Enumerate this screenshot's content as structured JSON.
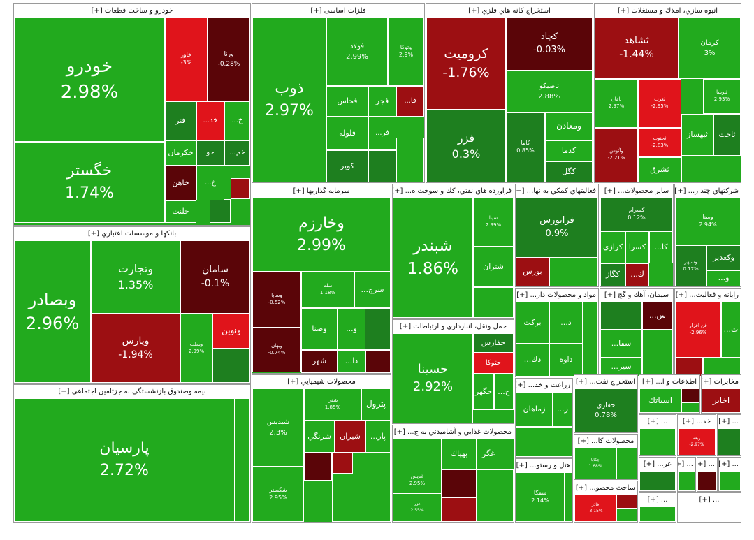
{
  "chart_data": {
    "type": "treemap",
    "colors": {
      "strong_up": "#22aa1e",
      "mild_up": "#1e7f1f",
      "down": "#5a0508",
      "strong_down": "#9c0f12",
      "extreme_down": "#e0141b",
      "border": "#ffffff",
      "header_bg": "#ffffff",
      "header_text": "#111111"
    },
    "sectors": [
      {
        "id": "s1",
        "title": "خودرو و ساخت قطعات [+]",
        "tiles": [
          {
            "name": "خودرو",
            "change": "2.98%",
            "value": 2.98
          },
          {
            "name": "خگستر",
            "change": "1.74%",
            "value": 1.74
          },
          {
            "name": "خاور",
            "change": "-3%",
            "value": -3
          },
          {
            "name": "ورنا",
            "change": "-0.28%",
            "value": -0.28
          },
          {
            "name": "فنر",
            "change": "",
            "value": 0.5
          },
          {
            "name": "خد...",
            "change": "",
            "value": -3
          },
          {
            "name": "خ...",
            "change": "",
            "value": 1.2
          },
          {
            "name": "خكرمان",
            "change": "",
            "value": 2
          },
          {
            "name": "خو",
            "change": "",
            "value": 0.4
          },
          {
            "name": "خم...",
            "change": "",
            "value": 0.3
          },
          {
            "name": "خاهن",
            "change": "",
            "value": -0.5
          },
          {
            "name": "خ...",
            "change": "",
            "value": 2
          },
          {
            "name": "خلنت",
            "change": "",
            "value": 2
          }
        ]
      },
      {
        "id": "s2",
        "title": "فلزات اساسی [+]",
        "tiles": [
          {
            "name": "ذوب",
            "change": "2.97%",
            "value": 2.97
          },
          {
            "name": "فولاد",
            "change": "2.99%",
            "value": 2.99
          },
          {
            "name": "وتوكا",
            "change": "2.9%",
            "value": 2.9
          },
          {
            "name": "فخاس",
            "change": "",
            "value": 2
          },
          {
            "name": "فجر",
            "change": "",
            "value": 2
          },
          {
            "name": "فا...",
            "change": "",
            "value": -2
          },
          {
            "name": "فلوله",
            "change": "",
            "value": 2
          },
          {
            "name": "فر...",
            "change": "",
            "value": 2
          },
          {
            "name": "كوير",
            "change": "",
            "value": 0.5
          }
        ]
      },
      {
        "id": "s3",
        "title": "استخراج كانه هاي فلزي [+]",
        "tiles": [
          {
            "name": "كروميت",
            "change": "-1.76%",
            "value": -1.76
          },
          {
            "name": "كچاد",
            "change": "-0.03%",
            "value": -0.03
          },
          {
            "name": "تاصيكو",
            "change": "2.88%",
            "value": 2.88
          },
          {
            "name": "فزر",
            "change": "0.3%",
            "value": 0.3
          },
          {
            "name": "كاما",
            "change": "0.85%",
            "value": 0.85
          },
          {
            "name": "ومعادن",
            "change": "",
            "value": 2
          },
          {
            "name": "كدما",
            "change": "",
            "value": 2
          },
          {
            "name": "كگل",
            "change": "",
            "value": 0.5
          }
        ]
      },
      {
        "id": "s4",
        "title": "انبوه سازي، املاك و مستغلات [+]",
        "tiles": [
          {
            "name": "ثشاهد",
            "change": "-1.44%",
            "value": -1.44
          },
          {
            "name": "كرمان",
            "change": "3%",
            "value": 3
          },
          {
            "name": "ثامان",
            "change": "2.97%",
            "value": 2.97
          },
          {
            "name": "ثغرب",
            "change": "-2.95%",
            "value": -2.95
          },
          {
            "name": "ثنوسا",
            "change": "2.93%",
            "value": 2.93
          },
          {
            "name": "ثجنوب",
            "change": "-2.83%",
            "value": -2.83
          },
          {
            "name": "ثبهساز",
            "change": "",
            "value": 1
          },
          {
            "name": "ثاخت",
            "change": "",
            "value": 0.5
          },
          {
            "name": "وآتوس",
            "change": "-2.21%",
            "value": -2.21
          },
          {
            "name": "ثشرق",
            "change": "",
            "value": 2
          }
        ]
      },
      {
        "id": "s5",
        "title": "بانكها و موسسات اعتباري [+]",
        "tiles": [
          {
            "name": "وبصادر",
            "change": "2.96%",
            "value": 2.96
          },
          {
            "name": "وتجارت",
            "change": "1.35%",
            "value": 1.35
          },
          {
            "name": "سامان",
            "change": "-0.1%",
            "value": -0.1
          },
          {
            "name": "وپارس",
            "change": "-1.94%",
            "value": -1.94
          },
          {
            "name": "وبملت",
            "change": "2.99%",
            "value": 2.99
          },
          {
            "name": "ونوين",
            "change": "",
            "value": -3
          }
        ]
      },
      {
        "id": "s6",
        "title": "سرمايه گذاريها [+]",
        "tiles": [
          {
            "name": "وخارزم",
            "change": "2.99%",
            "value": 2.99
          },
          {
            "name": "وسايا",
            "change": "-0.52%",
            "value": -0.52
          },
          {
            "name": "سلم",
            "change": "1.18%",
            "value": 1.18
          },
          {
            "name": "سرچ...",
            "change": "",
            "value": 2
          },
          {
            "name": "وصنا",
            "change": "",
            "value": 2
          },
          {
            "name": "و...",
            "change": "",
            "value": 2
          },
          {
            "name": "وبهان",
            "change": "-0.74%",
            "value": -0.74
          },
          {
            "name": "شهر",
            "change": "",
            "value": -0.5
          },
          {
            "name": "دا...",
            "change": "",
            "value": 2
          }
        ]
      },
      {
        "id": "s7",
        "title": "فراورده هاي نفتي، كك و سوخت ه... [+]",
        "tiles": [
          {
            "name": "شبندر",
            "change": "1.86%",
            "value": 1.86
          },
          {
            "name": "شپنا",
            "change": "2.99%",
            "value": 2.99
          },
          {
            "name": "شتران",
            "change": "",
            "value": 2
          }
        ]
      },
      {
        "id": "s8",
        "title": "فعاليتهاي كمكي به نها... [+]",
        "tiles": [
          {
            "name": "فرابورس",
            "change": "0.9%",
            "value": 0.9
          },
          {
            "name": "بورس",
            "change": "",
            "value": -2
          }
        ]
      },
      {
        "id": "s9",
        "title": "ساير محصولات... [+]",
        "tiles": [
          {
            "name": "كسرام",
            "change": "0.12%",
            "value": 0.12
          },
          {
            "name": "كا...",
            "change": "",
            "value": 2
          },
          {
            "name": "كسرا",
            "change": "",
            "value": 2
          },
          {
            "name": "كرازي",
            "change": "",
            "value": 2
          },
          {
            "name": "كگاز",
            "change": "",
            "value": 0.5
          },
          {
            "name": "ك...",
            "change": "",
            "value": -2
          }
        ]
      },
      {
        "id": "s10",
        "title": "شركتهاي چند ر... [+]",
        "tiles": [
          {
            "name": "وسنا",
            "change": "2.94%",
            "value": 2.94
          },
          {
            "name": "وسپهر",
            "change": "0.17%",
            "value": 0.17
          },
          {
            "name": "وكغدير",
            "change": "",
            "value": 0.5
          },
          {
            "name": "و...",
            "change": "",
            "value": 2
          }
        ]
      },
      {
        "id": "s11",
        "title": "مواد و محصولات دار... [+]",
        "tiles": [
          {
            "name": "بركت",
            "change": "",
            "value": 2
          },
          {
            "name": "د...",
            "change": "",
            "value": 2
          },
          {
            "name": "داوه",
            "change": "",
            "value": 2
          },
          {
            "name": "دك...",
            "change": "",
            "value": 2
          }
        ]
      },
      {
        "id": "s12",
        "title": "سيمان، آهك و گچ [+]",
        "tiles": [
          {
            "name": "س...",
            "change": "",
            "value": -0.5
          },
          {
            "name": "سفا...",
            "change": "",
            "value": 2
          },
          {
            "name": "سير...",
            "change": "",
            "value": 2
          }
        ]
      },
      {
        "id": "s13",
        "title": "رايانه و فعاليت... [+]",
        "tiles": [
          {
            "name": "فن افزار",
            "change": "-2.96%",
            "value": -2.96
          },
          {
            "name": "ت...",
            "change": "",
            "value": 2
          }
        ]
      },
      {
        "id": "s14",
        "title": "محصولات شيميايي [+]",
        "tiles": [
          {
            "name": "شيديس",
            "change": "2.3%",
            "value": 2.3
          },
          {
            "name": "شفن",
            "change": "1.85%",
            "value": 1.85
          },
          {
            "name": "پترول",
            "change": "",
            "value": 2
          },
          {
            "name": "شرنگي",
            "change": "",
            "value": 2
          },
          {
            "name": "شيران",
            "change": "",
            "value": -2
          },
          {
            "name": "پار...",
            "change": "",
            "value": 2
          },
          {
            "name": "شگستر",
            "change": "2.95%",
            "value": 2.95
          }
        ]
      },
      {
        "id": "s15",
        "title": "حمل ونقل، انبارداري و ارتباطات [+]",
        "tiles": [
          {
            "name": "حسينا",
            "change": "2.92%",
            "value": 2.92
          },
          {
            "name": "حفارس",
            "change": "",
            "value": 0.5
          },
          {
            "name": "حتوكا",
            "change": "",
            "value": -3
          },
          {
            "name": "حگهر",
            "change": "",
            "value": 2
          },
          {
            "name": "ح...",
            "change": "",
            "value": 2
          }
        ]
      },
      {
        "id": "s16",
        "title": "زراعت و خد... [+]",
        "tiles": [
          {
            "name": "زماهان",
            "change": "",
            "value": 2
          },
          {
            "name": "ز...",
            "change": "",
            "value": 2
          }
        ]
      },
      {
        "id": "s17",
        "title": "استخراج نفت... [+]",
        "tiles": [
          {
            "name": "حفاري",
            "change": "0.78%",
            "value": 0.78
          }
        ]
      },
      {
        "id": "s18",
        "title": "اطلاعات و ا... [+]",
        "tiles": [
          {
            "name": "اسياتك",
            "change": "",
            "value": 2
          }
        ]
      },
      {
        "id": "s19",
        "title": "مخابرات [+]",
        "tiles": [
          {
            "name": "اخابر",
            "change": "",
            "value": -2
          }
        ]
      },
      {
        "id": "s20",
        "title": "بيمه وصندوق بازنشستگي به جزتامين اجتماعي [+]",
        "tiles": [
          {
            "name": "پارسيان",
            "change": "2.72%",
            "value": 2.72
          }
        ]
      },
      {
        "id": "s21",
        "title": "محصولات غذايي و آشاميدني به ج... [+]",
        "tiles": [
          {
            "name": "غديس",
            "change": "2.95%",
            "value": 2.95
          },
          {
            "name": "بهپاك",
            "change": "",
            "value": 2
          },
          {
            "name": "غگز",
            "change": "",
            "value": 2
          },
          {
            "name": "غزر",
            "change": "2.55%",
            "value": 2.55
          }
        ]
      },
      {
        "id": "s22",
        "title": "محصولات كا... [+]",
        "tiles": [
          {
            "name": "چكاپا",
            "change": "1.68%",
            "value": 1.68
          }
        ]
      },
      {
        "id": "s23",
        "title": "هتل و رستو... [+]",
        "tiles": [
          {
            "name": "سمگا",
            "change": "2.14%",
            "value": 2.14
          }
        ]
      },
      {
        "id": "s24",
        "title": "ساخت محصو... [+]",
        "tiles": [
          {
            "name": "فاذر",
            "change": "-3.15%",
            "value": -3.15
          }
        ]
      },
      {
        "id": "s25",
        "title": "... [+]",
        "tiles": []
      },
      {
        "id": "s26",
        "title": "خد... [+]",
        "tiles": [
          {
            "name": "ربعه",
            "change": "-2.97%",
            "value": -2.97
          }
        ]
      },
      {
        "id": "s27",
        "title": "عر... [+]",
        "tiles": []
      },
      {
        "id": "s28",
        "title": "... [+]",
        "tiles": []
      },
      {
        "id": "s29",
        "title": "... [+]",
        "tiles": []
      },
      {
        "id": "s30",
        "title": "... [+]",
        "tiles": []
      },
      {
        "id": "s31",
        "title": "... [+]",
        "tiles": []
      },
      {
        "id": "s32",
        "title": "... [+]",
        "tiles": []
      },
      {
        "id": "s33",
        "title": "... [+]",
        "tiles": []
      }
    ]
  }
}
